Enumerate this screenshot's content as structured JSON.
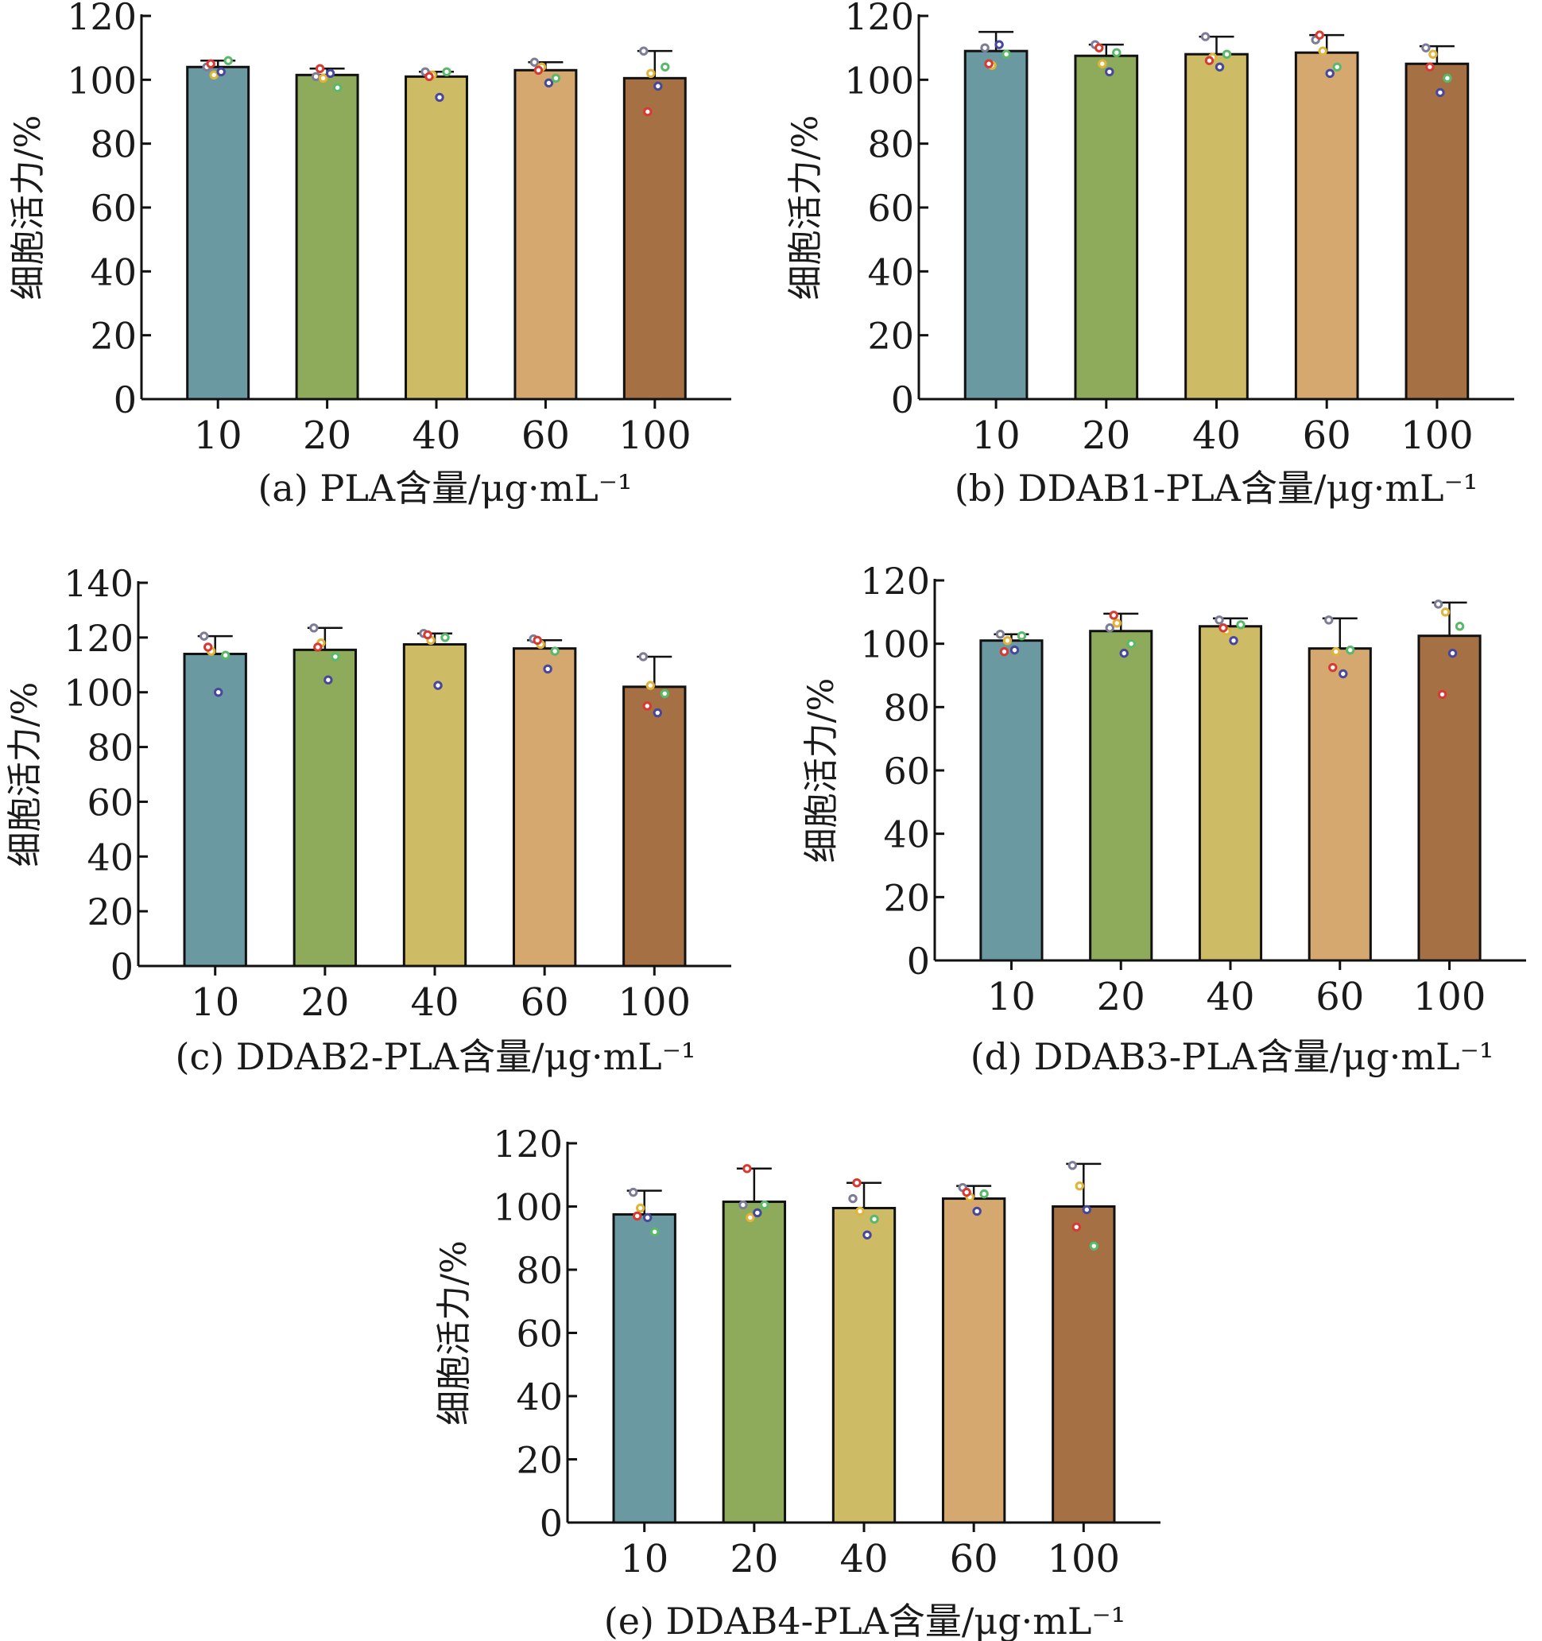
{
  "figure": {
    "panels_order": [
      "a",
      "b",
      "c",
      "d",
      "e"
    ]
  },
  "chart_data": [
    {
      "type": "bar",
      "id": "a",
      "ylabel": "细胞活力/%",
      "xlabel": "(a) PLA含量/μg·mL⁻¹",
      "categories": [
        "10",
        "20",
        "40",
        "60",
        "100"
      ],
      "ylim": [
        0,
        120
      ],
      "yticks": [
        0,
        20,
        40,
        60,
        80,
        100,
        120
      ],
      "values": [
        104,
        101.5,
        101,
        103,
        100.5
      ],
      "err": [
        2,
        2,
        1.5,
        2.5,
        8.5
      ],
      "points": [
        [
          104,
          101.5,
          102.5,
          106,
          105
        ],
        [
          101,
          100.5,
          102,
          97.5,
          103.5
        ],
        [
          102.5,
          101.5,
          94.5,
          102.5,
          101
        ],
        [
          105.5,
          104,
          99,
          100.5,
          103
        ],
        [
          109,
          102,
          98,
          104,
          90
        ]
      ],
      "bar_colors": [
        "#6b99a2",
        "#8dab5b",
        "#cdbb66",
        "#d5a870",
        "#a57043"
      ]
    },
    {
      "type": "bar",
      "id": "b",
      "ylabel": "细胞活力/%",
      "xlabel": "(b) DDAB1-PLA含量/μg·mL⁻¹",
      "categories": [
        "10",
        "20",
        "40",
        "60",
        "100"
      ],
      "ylim": [
        0,
        120
      ],
      "yticks": [
        0,
        20,
        40,
        60,
        80,
        100,
        120
      ],
      "values": [
        109,
        107.5,
        108,
        108.5,
        105
      ],
      "err": [
        6,
        3.5,
        5.5,
        5.5,
        5.5
      ],
      "points": [
        [
          110,
          104.5,
          111,
          108,
          105
        ],
        [
          111,
          105,
          102.5,
          108.5,
          110
        ],
        [
          113.5,
          107,
          104,
          108,
          106
        ],
        [
          112.5,
          109,
          102,
          104,
          114
        ],
        [
          110,
          108,
          96,
          100.5,
          104
        ]
      ],
      "bar_colors": [
        "#6b99a2",
        "#8dab5b",
        "#cdbb66",
        "#d5a870",
        "#a57043"
      ]
    },
    {
      "type": "bar",
      "id": "c",
      "ylabel": "细胞活力/%",
      "xlabel": "(c) DDAB2-PLA含量/μg·mL⁻¹",
      "categories": [
        "10",
        "20",
        "40",
        "60",
        "100"
      ],
      "ylim": [
        0,
        140
      ],
      "yticks": [
        0,
        20,
        40,
        60,
        80,
        100,
        120,
        140
      ],
      "values": [
        114,
        115.5,
        117.5,
        116,
        102
      ],
      "err": [
        6.5,
        8,
        4,
        3,
        11
      ],
      "points": [
        [
          120.5,
          115,
          100,
          113.5,
          116.5
        ],
        [
          123.5,
          118,
          104.5,
          113,
          116.5
        ],
        [
          121.5,
          119,
          102.5,
          120,
          121
        ],
        [
          119.5,
          117.5,
          108.5,
          115,
          119
        ],
        [
          113,
          102.5,
          92.5,
          99.5,
          95
        ]
      ],
      "bar_colors": [
        "#6b99a2",
        "#8dab5b",
        "#cdbb66",
        "#d5a870",
        "#a57043"
      ]
    },
    {
      "type": "bar",
      "id": "d",
      "ylabel": "细胞活力/%",
      "xlabel": "(d) DDAB3-PLA含量/μg·mL⁻¹",
      "categories": [
        "10",
        "20",
        "40",
        "60",
        "100"
      ],
      "ylim": [
        0,
        120
      ],
      "yticks": [
        0,
        20,
        40,
        60,
        80,
        100,
        120
      ],
      "values": [
        101,
        104,
        105.5,
        98.5,
        102.5
      ],
      "err": [
        2,
        5.5,
        2.5,
        9.5,
        10.5
      ],
      "points": [
        [
          103,
          101,
          98,
          102.5,
          97.5
        ],
        [
          105,
          106.5,
          97,
          100,
          109
        ],
        [
          107.5,
          104,
          101,
          106,
          105
        ],
        [
          107.5,
          97.5,
          90.5,
          98,
          92.5
        ],
        [
          112.5,
          110,
          97,
          105.5,
          84
        ]
      ],
      "bar_colors": [
        "#6b99a2",
        "#8dab5b",
        "#cdbb66",
        "#d5a870",
        "#a57043"
      ]
    },
    {
      "type": "bar",
      "id": "e",
      "ylabel": "细胞活力/%",
      "xlabel": "(e) DDAB4-PLA含量/μg·mL⁻¹",
      "categories": [
        "10",
        "20",
        "40",
        "60",
        "100"
      ],
      "ylim": [
        0,
        120
      ],
      "yticks": [
        0,
        20,
        40,
        60,
        80,
        100,
        120
      ],
      "values": [
        97.5,
        101.5,
        99.5,
        102.5,
        100
      ],
      "err": [
        7.5,
        10.5,
        8,
        4,
        13.5
      ],
      "points": [
        [
          104.5,
          99.5,
          96.5,
          92,
          97
        ],
        [
          100.5,
          96.5,
          98,
          100.5,
          112
        ],
        [
          102.5,
          98.5,
          91,
          96,
          107.5
        ],
        [
          106,
          103,
          98.5,
          104,
          104.5
        ],
        [
          113,
          106.5,
          99,
          87.5,
          93.5
        ]
      ],
      "bar_colors": [
        "#6b99a2",
        "#8dab5b",
        "#cdbb66",
        "#d5a870",
        "#a57043"
      ]
    }
  ],
  "point_colors": [
    "#7c7c96",
    "#e0b43a",
    "#48489a",
    "#5bb86a",
    "#d63a32"
  ]
}
